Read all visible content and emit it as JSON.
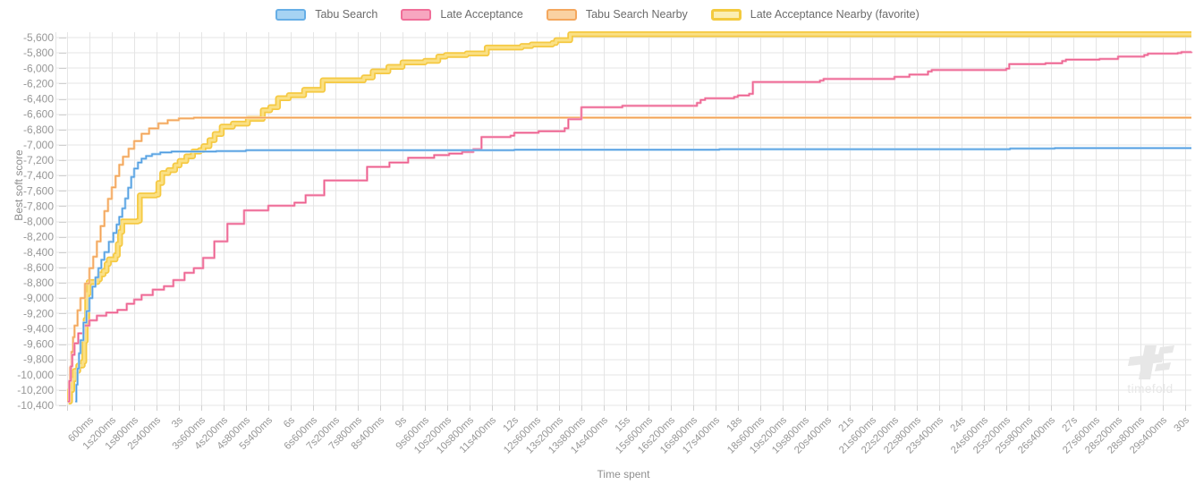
{
  "legend": {
    "items": [
      {
        "label": "Tabu Search",
        "fill": "#a6d3f3",
        "border": "#66aee6"
      },
      {
        "label": "Late Acceptance",
        "fill": "#f7a6c0",
        "border": "#f06e99"
      },
      {
        "label": "Tabu Search Nearby",
        "fill": "#fad2a2",
        "border": "#f4a75e"
      },
      {
        "label": "Late Acceptance Nearby (favorite)",
        "fill": "#fbeeb2",
        "border": "#f3ca3e"
      }
    ]
  },
  "watermark": {
    "text": "timefold",
    "color": "#e7e7e7"
  },
  "chart_data": {
    "type": "line",
    "step": true,
    "title": "",
    "xlabel": "Time spent",
    "ylabel": "Best soft score",
    "xlim_seconds": [
      0,
      30
    ],
    "ylim": [
      -10400,
      -5600
    ],
    "y_tick_step": 200,
    "grid": true,
    "legend_position": "top-center",
    "x_tick_labels": [
      "600ms",
      "1s200ms",
      "1s800ms",
      "2s400ms",
      "3s",
      "3s600ms",
      "4s200ms",
      "4s800ms",
      "5s400ms",
      "6s",
      "6s600ms",
      "7s200ms",
      "7s800ms",
      "8s400ms",
      "9s",
      "9s600ms",
      "10s200ms",
      "10s800ms",
      "11s400ms",
      "12s",
      "12s600ms",
      "13s200ms",
      "13s800ms",
      "14s400ms",
      "15s",
      "15s600ms",
      "16s200ms",
      "16s800ms",
      "17s400ms",
      "18s",
      "18s600ms",
      "19s200ms",
      "19s800ms",
      "20s400ms",
      "21s",
      "21s600ms",
      "22s200ms",
      "22s800ms",
      "23s400ms",
      "24s",
      "24s600ms",
      "25s200ms",
      "25s800ms",
      "26s400ms",
      "27s",
      "27s600ms",
      "28s200ms",
      "28s800ms",
      "29s400ms",
      "30s"
    ],
    "x_tick_interval_ms": 600,
    "y_tick_labels": [
      "-5,600",
      "-5,800",
      "-6,000",
      "-6,200",
      "-6,400",
      "-6,600",
      "-6,800",
      "-7,000",
      "-7,200",
      "-7,400",
      "-7,600",
      "-7,800",
      "-8,000",
      "-8,200",
      "-8,400",
      "-8,600",
      "-8,800",
      "-9,000",
      "-9,200",
      "-9,400",
      "-9,600",
      "-9,800",
      "-10,000",
      "-10,200",
      "-10,400"
    ],
    "series": [
      {
        "name": "Late Acceptance Nearby (favorite)",
        "stroke_outer": "#f5c942",
        "w_outer": 6.5,
        "stroke_inner": "#fae085",
        "w_inner": 3,
        "points": [
          [
            0.04,
            -10350
          ],
          [
            0.08,
            -10200
          ],
          [
            0.14,
            -10060
          ],
          [
            0.2,
            -9950
          ],
          [
            0.3,
            -9880
          ],
          [
            0.42,
            -9830
          ],
          [
            0.46,
            -9560
          ],
          [
            0.5,
            -9280
          ],
          [
            0.54,
            -8940
          ],
          [
            0.58,
            -8790
          ],
          [
            0.82,
            -8755
          ],
          [
            0.88,
            -8690
          ],
          [
            0.98,
            -8645
          ],
          [
            1.06,
            -8555
          ],
          [
            1.12,
            -8495
          ],
          [
            1.3,
            -8440
          ],
          [
            1.36,
            -8295
          ],
          [
            1.42,
            -8135
          ],
          [
            1.48,
            -8000
          ],
          [
            1.9,
            -7990
          ],
          [
            1.95,
            -7660
          ],
          [
            2.38,
            -7650
          ],
          [
            2.45,
            -7498
          ],
          [
            2.55,
            -7368
          ],
          [
            2.72,
            -7330
          ],
          [
            2.9,
            -7268
          ],
          [
            3.02,
            -7210
          ],
          [
            3.2,
            -7150
          ],
          [
            3.38,
            -7088
          ],
          [
            3.56,
            -7068
          ],
          [
            3.66,
            -7018
          ],
          [
            3.82,
            -6938
          ],
          [
            3.96,
            -6858
          ],
          [
            4.15,
            -6762
          ],
          [
            4.45,
            -6722
          ],
          [
            4.85,
            -6662
          ],
          [
            5.25,
            -6548
          ],
          [
            5.45,
            -6508
          ],
          [
            5.66,
            -6392
          ],
          [
            5.95,
            -6352
          ],
          [
            6.36,
            -6282
          ],
          [
            6.86,
            -6158
          ],
          [
            7.96,
            -6120
          ],
          [
            8.2,
            -6042
          ],
          [
            8.62,
            -5982
          ],
          [
            9.0,
            -5924
          ],
          [
            9.6,
            -5904
          ],
          [
            9.96,
            -5848
          ],
          [
            10.16,
            -5828
          ],
          [
            10.72,
            -5808
          ],
          [
            11.26,
            -5730
          ],
          [
            12.2,
            -5710
          ],
          [
            12.46,
            -5690
          ],
          [
            13.02,
            -5670
          ],
          [
            13.12,
            -5634
          ],
          [
            13.5,
            -5556
          ],
          [
            30.2,
            -5556
          ]
        ]
      },
      {
        "name": "Tabu Search Nearby",
        "stroke_outer": "#fbd2a0",
        "w_outer": 2.8,
        "stroke_inner": "#f2a159",
        "w_inner": 1.2,
        "points": [
          [
            0.02,
            -10350
          ],
          [
            0.05,
            -10100
          ],
          [
            0.08,
            -9905
          ],
          [
            0.12,
            -9700
          ],
          [
            0.16,
            -9510
          ],
          [
            0.2,
            -9360
          ],
          [
            0.28,
            -9160
          ],
          [
            0.36,
            -9000
          ],
          [
            0.48,
            -8810
          ],
          [
            0.6,
            -8610
          ],
          [
            0.7,
            -8460
          ],
          [
            0.8,
            -8260
          ],
          [
            0.9,
            -8060
          ],
          [
            1.0,
            -7865
          ],
          [
            1.1,
            -7705
          ],
          [
            1.2,
            -7555
          ],
          [
            1.3,
            -7405
          ],
          [
            1.4,
            -7260
          ],
          [
            1.5,
            -7155
          ],
          [
            1.65,
            -7050
          ],
          [
            1.8,
            -6950
          ],
          [
            2.0,
            -6855
          ],
          [
            2.2,
            -6785
          ],
          [
            2.45,
            -6720
          ],
          [
            2.7,
            -6678
          ],
          [
            3.0,
            -6655
          ],
          [
            3.4,
            -6645
          ],
          [
            30.2,
            -6645
          ]
        ]
      },
      {
        "name": "Late Acceptance",
        "stroke_outer": "#f7abc4",
        "w_outer": 2.8,
        "stroke_inner": "#ec5f8e",
        "w_inner": 1.2,
        "points": [
          [
            0.02,
            -10350
          ],
          [
            0.06,
            -10080
          ],
          [
            0.1,
            -9890
          ],
          [
            0.14,
            -9740
          ],
          [
            0.2,
            -9590
          ],
          [
            0.3,
            -9460
          ],
          [
            0.45,
            -9360
          ],
          [
            0.6,
            -9290
          ],
          [
            0.8,
            -9230
          ],
          [
            1.05,
            -9190
          ],
          [
            1.35,
            -9155
          ],
          [
            1.6,
            -9075
          ],
          [
            1.8,
            -9020
          ],
          [
            2.0,
            -8960
          ],
          [
            2.3,
            -8890
          ],
          [
            2.6,
            -8845
          ],
          [
            2.85,
            -8765
          ],
          [
            3.15,
            -8670
          ],
          [
            3.4,
            -8610
          ],
          [
            3.65,
            -8475
          ],
          [
            3.95,
            -8260
          ],
          [
            4.3,
            -8030
          ],
          [
            4.75,
            -7855
          ],
          [
            5.4,
            -7795
          ],
          [
            6.1,
            -7755
          ],
          [
            6.4,
            -7658
          ],
          [
            6.9,
            -7465
          ],
          [
            8.05,
            -7288
          ],
          [
            8.65,
            -7230
          ],
          [
            9.15,
            -7170
          ],
          [
            9.85,
            -7133
          ],
          [
            10.25,
            -7113
          ],
          [
            10.6,
            -7093
          ],
          [
            10.9,
            -7055
          ],
          [
            11.12,
            -6898
          ],
          [
            11.9,
            -6880
          ],
          [
            12.0,
            -6843
          ],
          [
            12.65,
            -6822
          ],
          [
            13.35,
            -6783
          ],
          [
            13.45,
            -6665
          ],
          [
            13.8,
            -6510
          ],
          [
            14.9,
            -6490
          ],
          [
            16.9,
            -6452
          ],
          [
            17.0,
            -6413
          ],
          [
            17.12,
            -6393
          ],
          [
            17.9,
            -6374
          ],
          [
            18.0,
            -6355
          ],
          [
            18.3,
            -6335
          ],
          [
            18.4,
            -6180
          ],
          [
            20.2,
            -6160
          ],
          [
            20.3,
            -6140
          ],
          [
            22.2,
            -6113
          ],
          [
            22.6,
            -6082
          ],
          [
            23.1,
            -6043
          ],
          [
            23.2,
            -6023
          ],
          [
            25.2,
            -6004
          ],
          [
            25.28,
            -5946
          ],
          [
            26.25,
            -5934
          ],
          [
            26.7,
            -5906
          ],
          [
            26.8,
            -5887
          ],
          [
            27.7,
            -5879
          ],
          [
            28.2,
            -5848
          ],
          [
            28.9,
            -5828
          ],
          [
            29.0,
            -5809
          ],
          [
            29.8,
            -5801
          ],
          [
            29.9,
            -5789
          ],
          [
            30.2,
            -5784
          ]
        ]
      },
      {
        "name": "Tabu Search",
        "stroke_outer": "#a8d2f2",
        "w_outer": 2.8,
        "stroke_inner": "#4f9be0",
        "w_inner": 1.2,
        "points": [
          [
            0.22,
            -10350
          ],
          [
            0.25,
            -10130
          ],
          [
            0.28,
            -9920
          ],
          [
            0.32,
            -9720
          ],
          [
            0.36,
            -9550
          ],
          [
            0.44,
            -9320
          ],
          [
            0.52,
            -9170
          ],
          [
            0.6,
            -9000
          ],
          [
            0.68,
            -8850
          ],
          [
            0.76,
            -8730
          ],
          [
            0.84,
            -8610
          ],
          [
            0.92,
            -8500
          ],
          [
            1.0,
            -8400
          ],
          [
            1.12,
            -8265
          ],
          [
            1.24,
            -8150
          ],
          [
            1.33,
            -8040
          ],
          [
            1.4,
            -7940
          ],
          [
            1.48,
            -7830
          ],
          [
            1.56,
            -7700
          ],
          [
            1.64,
            -7560
          ],
          [
            1.72,
            -7420
          ],
          [
            1.8,
            -7310
          ],
          [
            1.9,
            -7230
          ],
          [
            2.0,
            -7180
          ],
          [
            2.12,
            -7145
          ],
          [
            2.28,
            -7120
          ],
          [
            2.5,
            -7100
          ],
          [
            2.8,
            -7088
          ],
          [
            4.0,
            -7082
          ],
          [
            4.8,
            -7070
          ],
          [
            12.0,
            -7065
          ],
          [
            17.5,
            -7058
          ],
          [
            25.3,
            -7048
          ],
          [
            26.5,
            -7042
          ],
          [
            30.2,
            -7042
          ]
        ]
      }
    ]
  }
}
